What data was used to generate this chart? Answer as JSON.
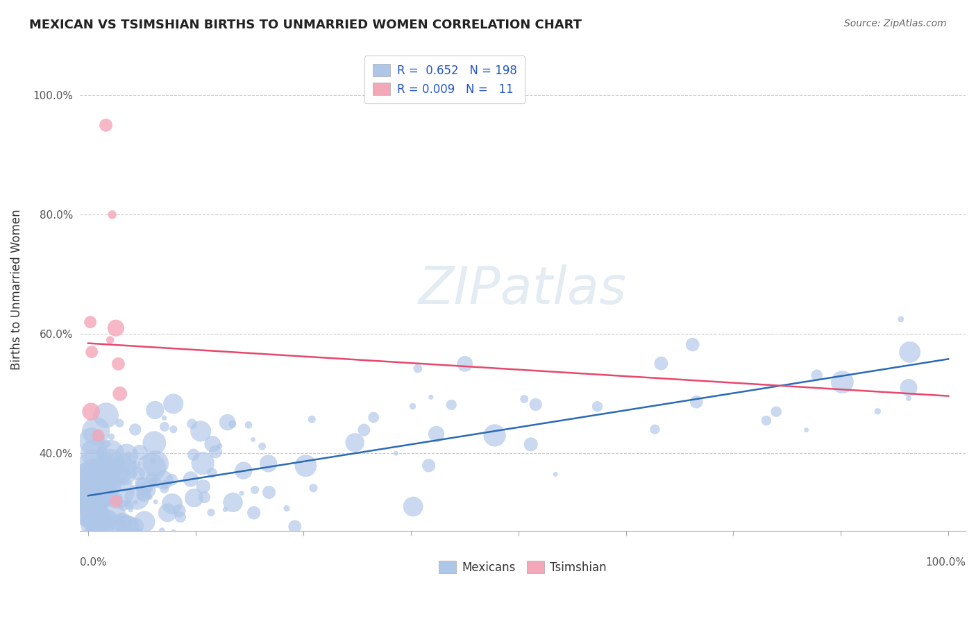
{
  "title": "MEXICAN VS TSIMSHIAN BIRTHS TO UNMARRIED WOMEN CORRELATION CHART",
  "source": "Source: ZipAtlas.com",
  "ylabel": "Births to Unmarried Women",
  "yticks": [
    "40.0%",
    "60.0%",
    "80.0%",
    "100.0%"
  ],
  "ytick_vals": [
    0.4,
    0.6,
    0.8,
    1.0
  ],
  "mexican_color": "#aec6e8",
  "tsimshian_color": "#f4a7b9",
  "blue_line_color": "#2a6ab5",
  "pink_line_color": "#e8476a",
  "watermark": "ZIPatlas",
  "background_color": "#ffffff",
  "seed": 42,
  "n_mexican": 198,
  "n_tsimshian": 11
}
